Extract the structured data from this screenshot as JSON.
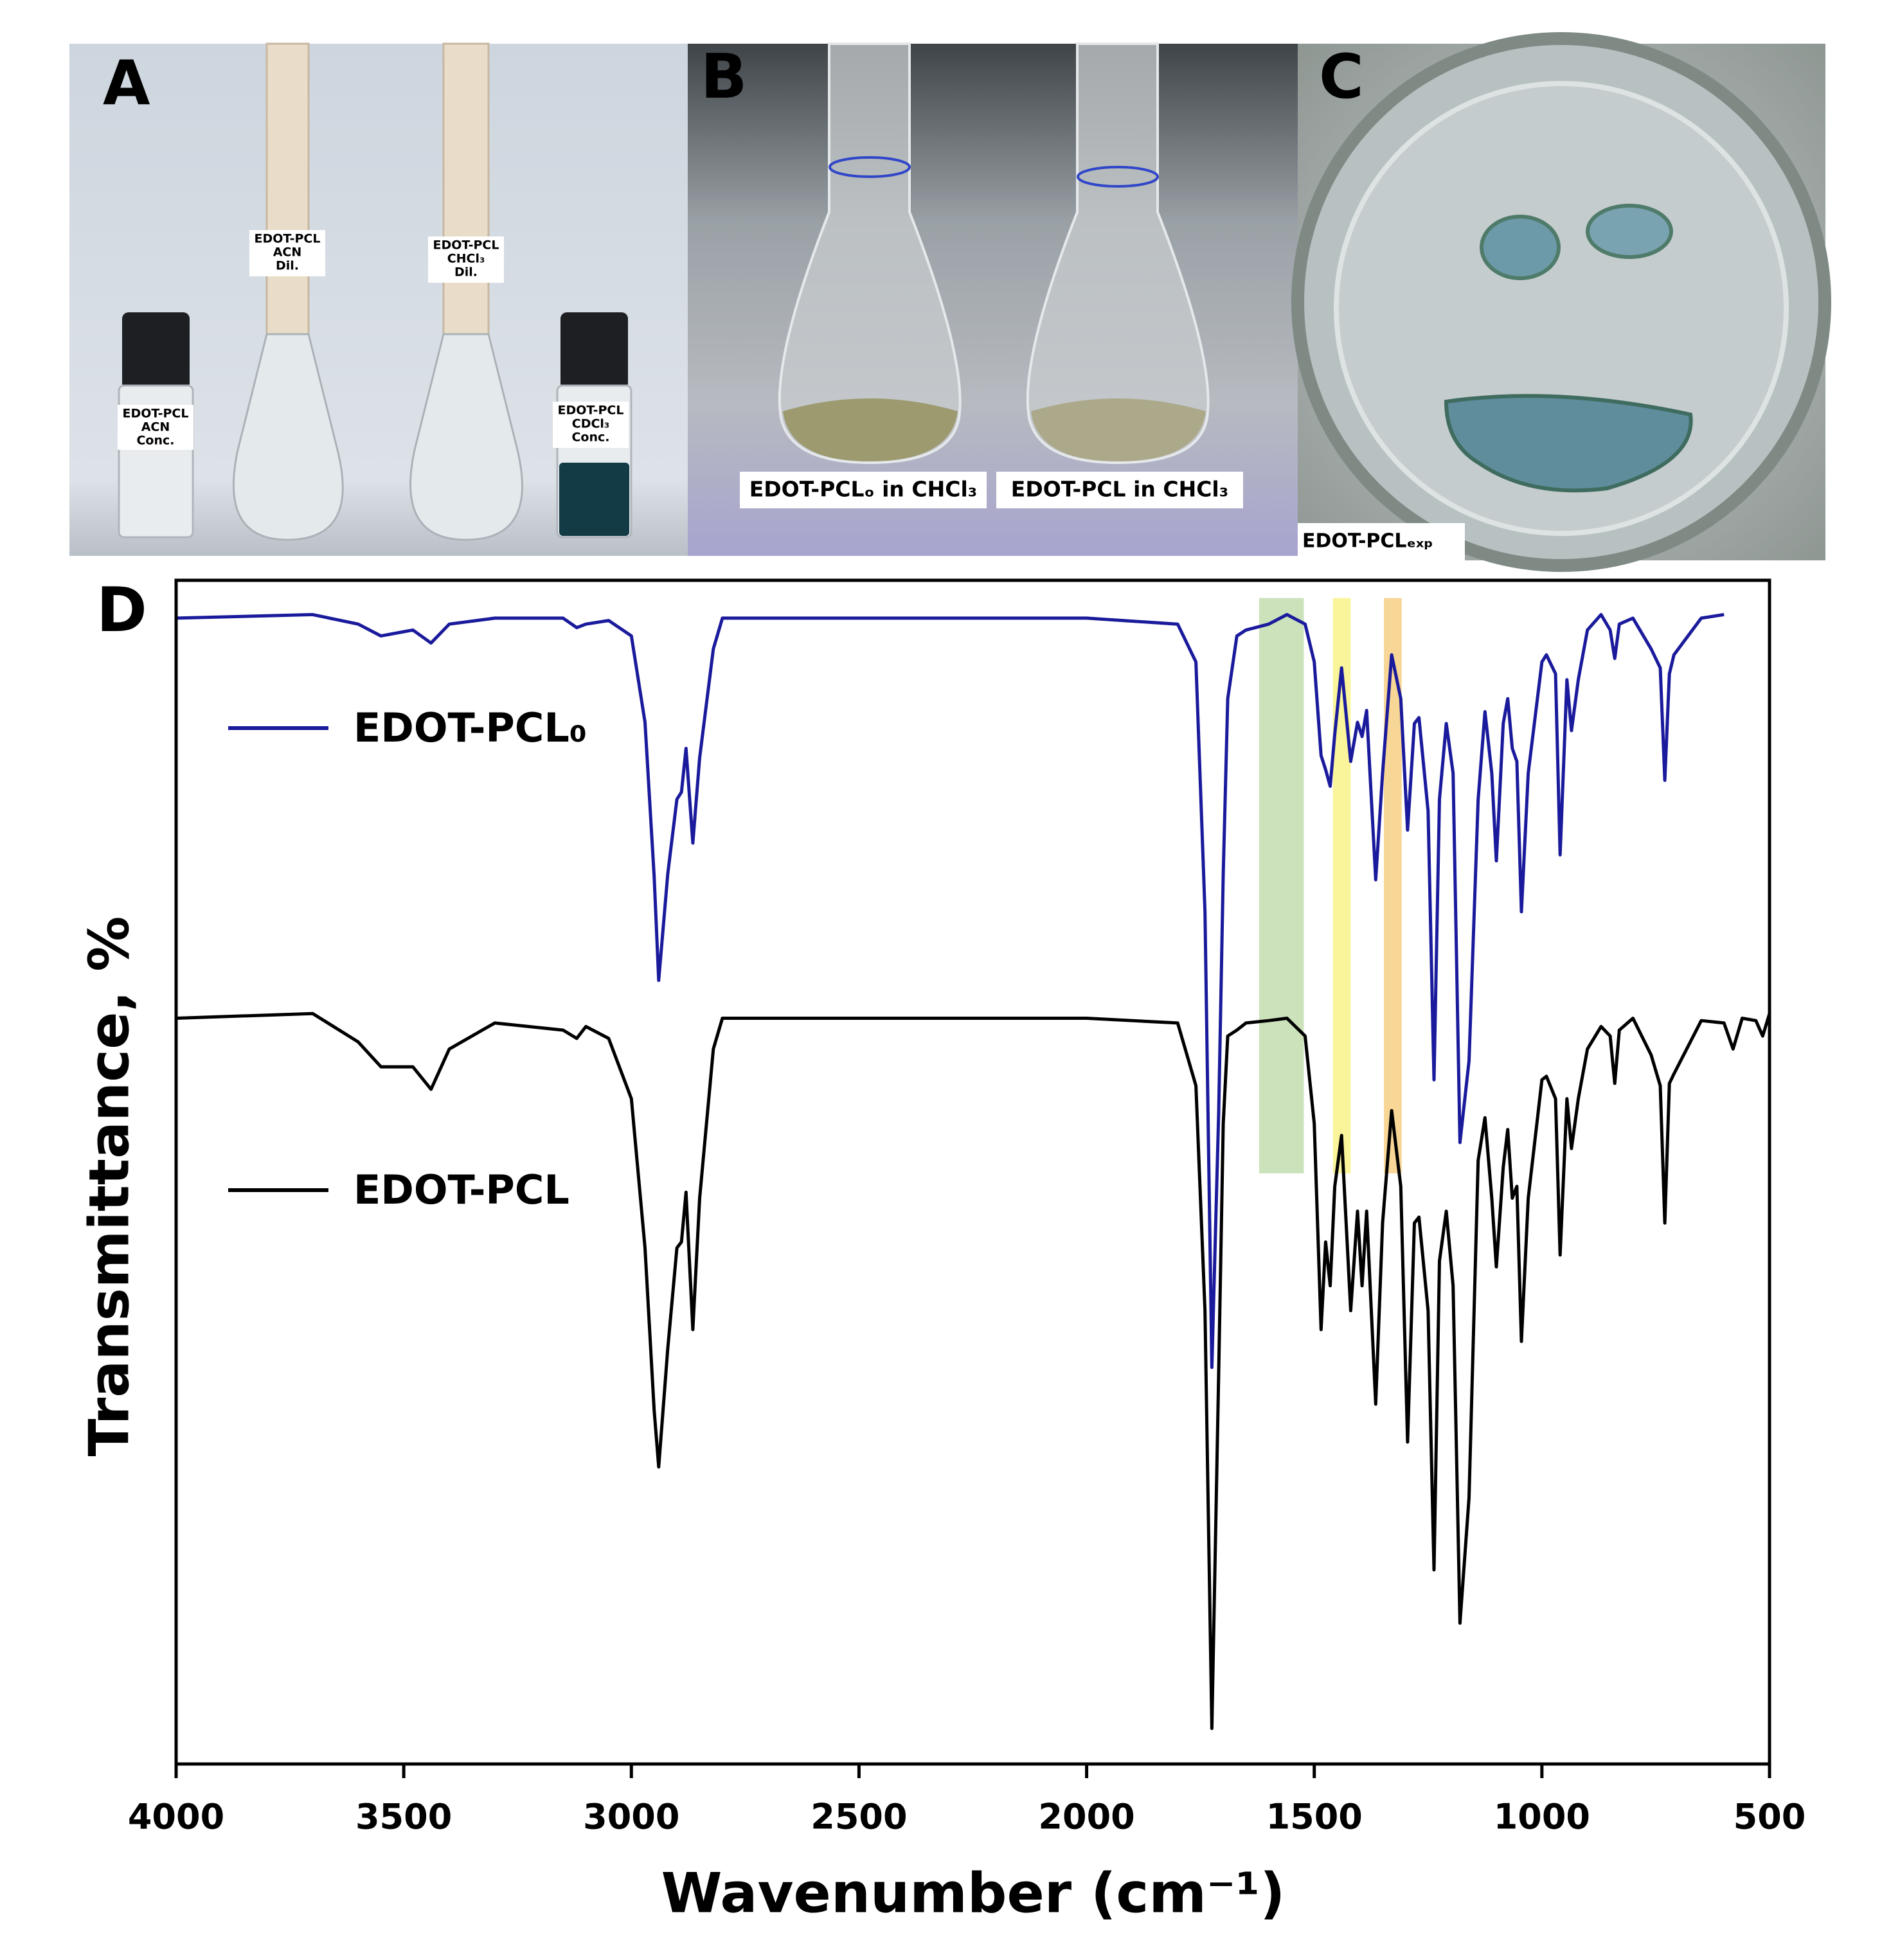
{
  "photos": [
    {
      "letter": "A",
      "labels": [
        [
          "EDOT-PCL",
          "ACN",
          "Conc."
        ],
        [
          "EDOT-PCL",
          "ACN",
          "Dil."
        ],
        [
          "EDOT-PCL",
          "CHCl₃",
          "Dil."
        ],
        [
          "EDOT-PCL",
          "CDCl₃",
          "Conc."
        ]
      ]
    },
    {
      "letter": "B",
      "labels": [
        "EDOT-PCLₒ in CHCl₃",
        "EDOT-PCL in CHCl₃"
      ]
    },
    {
      "letter": "C",
      "labels": [
        "EDOT-PCLₑₓₚ"
      ]
    }
  ],
  "chart_data": {
    "type": "line",
    "panel_letter": "D",
    "xlabel": "Wavenumber (cm⁻¹)",
    "ylabel": "Transmittance, %",
    "xlim": [
      4000,
      500
    ],
    "xticks": [
      4000,
      3500,
      3000,
      2500,
      2000,
      1500,
      1000,
      500
    ],
    "ylim": [
      0,
      100
    ],
    "x": [
      4000,
      3700,
      3600,
      3550,
      3480,
      3440,
      3400,
      3300,
      3150,
      3120,
      3100,
      3050,
      3000,
      2970,
      2950,
      2940,
      2920,
      2900,
      2890,
      2880,
      2865,
      2850,
      2820,
      2800,
      2500,
      2000,
      1800,
      1760,
      1740,
      1725,
      1710,
      1700,
      1690,
      1670,
      1650,
      1600,
      1560,
      1520,
      1500,
      1485,
      1475,
      1465,
      1455,
      1440,
      1420,
      1405,
      1395,
      1385,
      1365,
      1350,
      1330,
      1310,
      1295,
      1280,
      1270,
      1250,
      1237,
      1225,
      1210,
      1195,
      1180,
      1160,
      1140,
      1125,
      1110,
      1100,
      1085,
      1075,
      1065,
      1055,
      1045,
      1030,
      1000,
      990,
      970,
      960,
      945,
      935,
      920,
      900,
      870,
      850,
      840,
      830,
      800,
      760,
      740,
      730,
      720,
      710,
      650,
      600,
      580,
      560,
      530,
      515,
      500
    ],
    "series": [
      {
        "name": "EDOT-PCL₀",
        "color": "#1a1a9c",
        "values": [
          96.8,
          97.1,
          96.3,
          95.3,
          95.8,
          94.7,
          96.3,
          96.8,
          96.8,
          96.0,
          96.3,
          96.6,
          95.3,
          88.0,
          75.0,
          66.2,
          75.2,
          81.5,
          82.1,
          85.8,
          77.8,
          85.0,
          94.2,
          96.8,
          96.8,
          96.8,
          96.3,
          93.1,
          72.0,
          33.5,
          55.0,
          75.2,
          90.0,
          95.3,
          95.8,
          96.3,
          97.1,
          96.3,
          93.1,
          85.2,
          84.0,
          82.6,
          87.0,
          92.6,
          84.7,
          88.0,
          86.8,
          89.0,
          74.7,
          83.7,
          93.7,
          90.0,
          78.9,
          87.9,
          88.4,
          80.5,
          57.8,
          81.5,
          87.9,
          83.7,
          52.5,
          59.4,
          81.5,
          88.9,
          83.7,
          76.3,
          87.9,
          90.0,
          85.8,
          84.7,
          72.0,
          83.7,
          93.1,
          93.7,
          92.1,
          76.8,
          91.6,
          87.3,
          91.6,
          95.8,
          97.1,
          95.8,
          93.4,
          96.3,
          96.8,
          94.2,
          92.6,
          83.1,
          92.1,
          93.7,
          96.8,
          97.1,
          null,
          null,
          null,
          null,
          null
        ]
      },
      {
        "name": "EDOT-PCL",
        "color": "#000000",
        "values": [
          63.0,
          63.4,
          61.0,
          58.9,
          58.9,
          57.0,
          60.4,
          62.6,
          62.0,
          61.3,
          62.3,
          61.3,
          56.2,
          43.6,
          29.9,
          25.1,
          35.1,
          43.6,
          44.1,
          48.3,
          36.7,
          47.8,
          60.4,
          63.0,
          63.0,
          63.0,
          62.6,
          57.3,
          38.3,
          3.0,
          33.0,
          54.1,
          61.5,
          62.0,
          62.6,
          62.8,
          63.0,
          61.5,
          54.1,
          36.7,
          44.1,
          40.4,
          48.8,
          53.1,
          38.3,
          46.7,
          40.4,
          46.7,
          30.4,
          45.7,
          55.2,
          48.8,
          27.2,
          45.7,
          46.2,
          38.3,
          16.4,
          42.5,
          46.7,
          40.4,
          11.9,
          22.5,
          51.0,
          54.6,
          47.8,
          42.0,
          50.4,
          53.6,
          47.8,
          48.8,
          35.7,
          47.8,
          57.8,
          58.1,
          56.2,
          43.0,
          56.2,
          52.0,
          56.2,
          60.4,
          62.3,
          61.5,
          57.5,
          62.0,
          63.0,
          59.9,
          57.3,
          45.7,
          57.5,
          58.3,
          62.8,
          62.6,
          60.4,
          63.0,
          62.8,
          61.5,
          63.4
        ]
      }
    ],
    "bands": [
      {
        "x": [
          1621,
          1523
        ],
        "y": [
          98.5,
          49.9
        ],
        "color": "#b9d8a4"
      },
      {
        "x": [
          1459,
          1420
        ],
        "y": [
          98.5,
          49.9
        ],
        "color": "#f8f27a"
      },
      {
        "x": [
          1347,
          1308
        ],
        "y": [
          98.5,
          49.9
        ],
        "color": "#f6c873"
      }
    ]
  }
}
